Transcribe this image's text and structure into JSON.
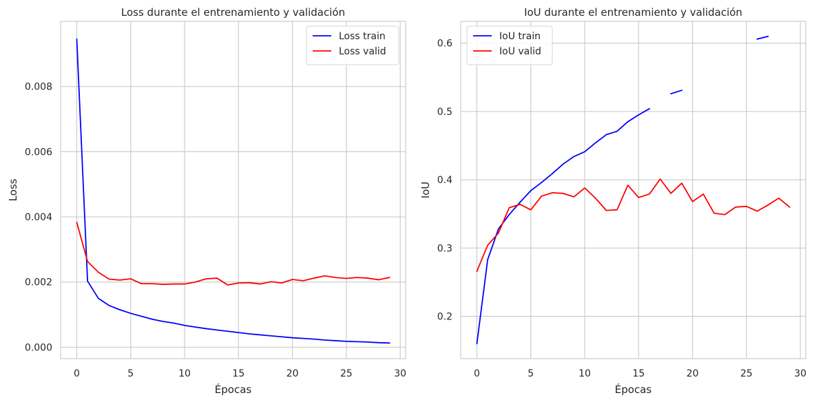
{
  "chart_data": [
    {
      "type": "line",
      "title": "Loss durante el entrenamiento y validación",
      "xlabel": "Épocas",
      "ylabel": "Loss",
      "xlim": [
        -1.5,
        30.5
      ],
      "ylim": [
        -0.00035,
        0.01
      ],
      "xticks": [
        0,
        5,
        10,
        15,
        20,
        25,
        30
      ],
      "xtick_labels": [
        "0",
        "5",
        "10",
        "15",
        "20",
        "25",
        "30"
      ],
      "yticks": [
        0,
        0.002,
        0.004,
        0.006,
        0.008
      ],
      "ytick_labels": [
        "0.000",
        "0.002",
        "0.004",
        "0.006",
        "0.008"
      ],
      "grid": true,
      "legend_position": "top-right",
      "x": [
        0,
        1,
        2,
        3,
        4,
        5,
        6,
        7,
        8,
        9,
        10,
        11,
        12,
        13,
        14,
        15,
        16,
        17,
        18,
        19,
        20,
        21,
        22,
        23,
        24,
        25,
        26,
        27,
        28,
        29
      ],
      "series": [
        {
          "name": "Loss train",
          "color": "#0000ff",
          "values": [
            0.00945,
            0.00203,
            0.0015,
            0.00128,
            0.00115,
            0.00104,
            0.00095,
            0.00086,
            0.00079,
            0.00074,
            0.00067,
            0.00062,
            0.00057,
            0.00053,
            0.00049,
            0.00045,
            0.00041,
            0.00038,
            0.00035,
            0.00032,
            0.00029,
            0.00027,
            0.00025,
            0.00022,
            0.0002,
            0.00018,
            0.00017,
            0.00016,
            0.00014,
            0.00013
          ]
        },
        {
          "name": "Loss valid",
          "color": "#ff0000",
          "values": [
            0.00383,
            0.00263,
            0.0023,
            0.00209,
            0.00206,
            0.0021,
            0.00195,
            0.00195,
            0.00193,
            0.00194,
            0.00194,
            0.002,
            0.0021,
            0.00212,
            0.00191,
            0.00197,
            0.00198,
            0.00194,
            0.00201,
            0.00197,
            0.00208,
            0.00204,
            0.00212,
            0.00219,
            0.00214,
            0.00211,
            0.00214,
            0.00212,
            0.00207,
            0.00214
          ]
        }
      ]
    },
    {
      "type": "line",
      "title": "IoU durante el entrenamiento y validación",
      "xlabel": "Épocas",
      "ylabel": "IoU",
      "xlim": [
        -1.5,
        30.5
      ],
      "ylim": [
        0.138,
        0.632
      ],
      "xticks": [
        0,
        5,
        10,
        15,
        20,
        25,
        30
      ],
      "xtick_labels": [
        "0",
        "5",
        "10",
        "15",
        "20",
        "25",
        "30"
      ],
      "yticks": [
        0.2,
        0.3,
        0.4,
        0.5,
        0.6
      ],
      "ytick_labels": [
        "0.2",
        "0.3",
        "0.4",
        "0.5",
        "0.6"
      ],
      "grid": true,
      "legend_position": "top-left",
      "x": [
        0,
        1,
        2,
        3,
        4,
        5,
        6,
        7,
        8,
        9,
        10,
        11,
        12,
        13,
        14,
        15,
        16,
        17,
        18,
        19,
        20,
        21,
        22,
        23,
        24,
        25,
        26,
        27,
        28,
        29
      ],
      "series": [
        {
          "name": "IoU train",
          "color": "#0000ff",
          "values": [
            0.16,
            0.283,
            0.328,
            0.349,
            0.367,
            0.384,
            0.396,
            0.409,
            0.423,
            0.434,
            0.441,
            0.454,
            0.466,
            0.471,
            0.485,
            0.495,
            0.504,
            null,
            0.526,
            0.531,
            null,
            null,
            null,
            null,
            null,
            null,
            0.606,
            0.61,
            null,
            null
          ]
        },
        {
          "name": "IoU valid",
          "color": "#ff0000",
          "values": [
            0.266,
            0.304,
            0.322,
            0.359,
            0.364,
            0.356,
            0.376,
            0.381,
            0.38,
            0.375,
            0.388,
            0.373,
            0.355,
            0.356,
            0.392,
            0.374,
            0.379,
            0.401,
            0.38,
            0.395,
            0.368,
            0.379,
            0.351,
            0.349,
            0.36,
            0.361,
            0.354,
            0.363,
            0.373,
            0.36
          ]
        }
      ]
    }
  ]
}
